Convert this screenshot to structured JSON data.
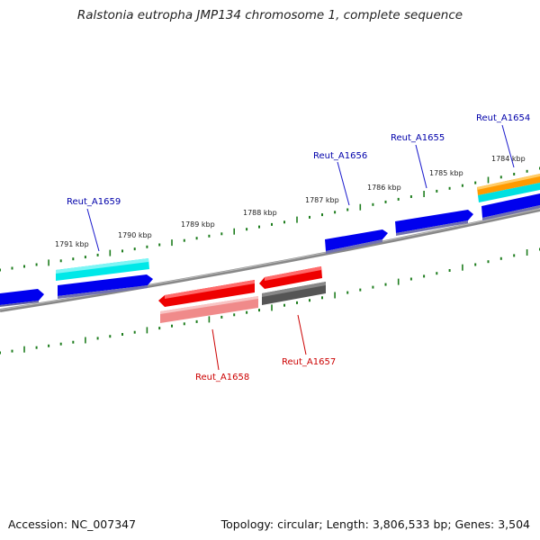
{
  "title": "Ralstonia eutropha JMP134 chromosome 1, complete sequence",
  "footer": {
    "accession": "Accession: NC_007347",
    "topology": "Topology: circular; Length: 3,806,533 bp; Genes: 3,504"
  },
  "scale_labels": [
    "1791 kbp",
    "1790 kbp",
    "1789 kbp",
    "1788 kbp",
    "1787 kbp",
    "1786 kbp",
    "1785 kbp",
    "1784 kbp"
  ],
  "gene_labels": {
    "reut_a1659": "Reut_A1659",
    "reut_a1656": "Reut_A1656",
    "reut_a1655": "Reut_A1655",
    "reut_a1654": "Reut_A1654",
    "reut_a1658": "Reut_A1658",
    "reut_a1657": "Reut_A1657"
  },
  "colors": {
    "forward_cds": "#0000ee",
    "reverse_cds": "#ee0000",
    "rna_feature": "#00e5e5",
    "gene_reverse": "#f08080",
    "pseudo_feature": "#555555",
    "other_feature": "#ff9900",
    "backbone": "#888888",
    "scale_ticks": "#1e7d1e",
    "forward_label": "#0000aa",
    "reverse_label": "#cc0000"
  }
}
